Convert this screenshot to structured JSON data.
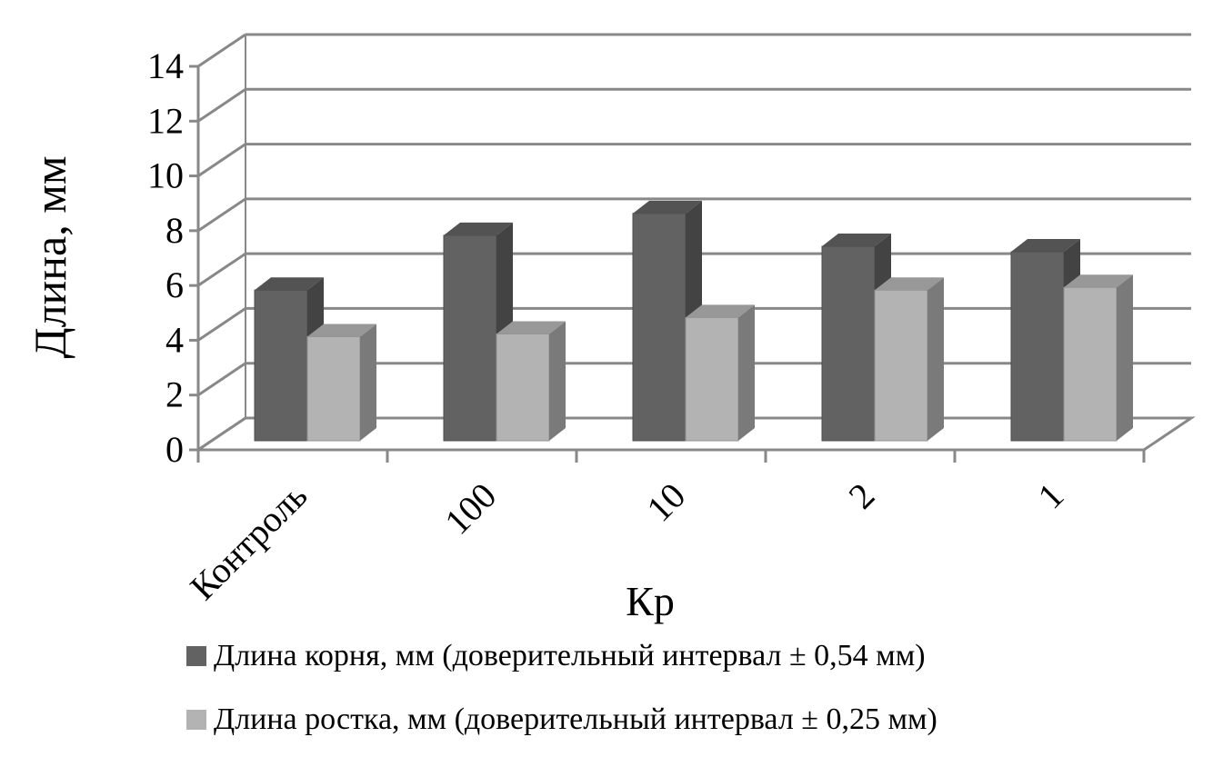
{
  "chart_data": {
    "type": "bar",
    "ylabel": "Длина, мм",
    "xlabel": "Кр",
    "ylim": [
      0,
      14
    ],
    "yticks": [
      "0",
      "2",
      "4",
      "6",
      "8",
      "10",
      "12",
      "14"
    ],
    "categories": [
      "Контроль",
      "100",
      "10",
      "2",
      "1"
    ],
    "series": [
      {
        "name": "Длина корня, мм (доверительный интервал ± 0,54 мм)",
        "values": [
          5.5,
          7.5,
          8.3,
          7.1,
          6.9
        ],
        "color": "#626262"
      },
      {
        "name": "Длина ростка, мм (доверительный интервал ± 0,25 мм)",
        "values": [
          3.8,
          3.9,
          4.5,
          5.5,
          5.6
        ],
        "color": "#b3b3b3"
      }
    ],
    "grid": true,
    "legend_position": "bottom",
    "style": "3d-column"
  }
}
